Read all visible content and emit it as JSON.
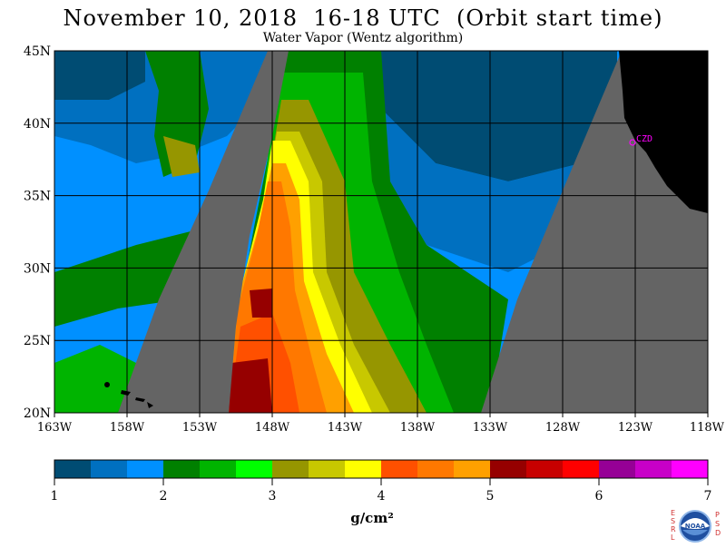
{
  "header": {
    "title": "November 10, 2018  16-18 UTC  (Orbit start time)",
    "subtitle": "Water Vapor (Wentz algorithm)"
  },
  "map": {
    "lat_labels": [
      "45N",
      "40N",
      "35N",
      "30N",
      "25N",
      "20N"
    ],
    "lon_labels": [
      "163W",
      "158W",
      "153W",
      "148W",
      "143W",
      "138W",
      "133W",
      "128W",
      "123W",
      "118W"
    ],
    "lat_range": [
      20,
      45
    ],
    "lon_range": [
      -163,
      -118
    ],
    "station_label": "CZD",
    "colors": {
      "no_data": "#646464",
      "land": "#000000",
      "station": "#ff00ff"
    }
  },
  "colorbar": {
    "tick_labels": [
      "1",
      "2",
      "3",
      "4",
      "5",
      "6",
      "7"
    ],
    "units": "g/cm²",
    "colors": [
      "#004c73",
      "#0070c0",
      "#0090ff",
      "#008000",
      "#00b400",
      "#00ff00",
      "#969600",
      "#c8c800",
      "#ffff00",
      "#ff5000",
      "#ff7800",
      "#ffa000",
      "#960000",
      "#c80000",
      "#ff0000",
      "#960096",
      "#c800c8",
      "#ff00ff"
    ]
  },
  "logo": {
    "left_letters": [
      "E",
      "S",
      "R",
      "L"
    ],
    "right_letters": [
      "P",
      "S",
      "D"
    ],
    "name": "NOAA",
    "icon": "noaa-logo-icon"
  }
}
